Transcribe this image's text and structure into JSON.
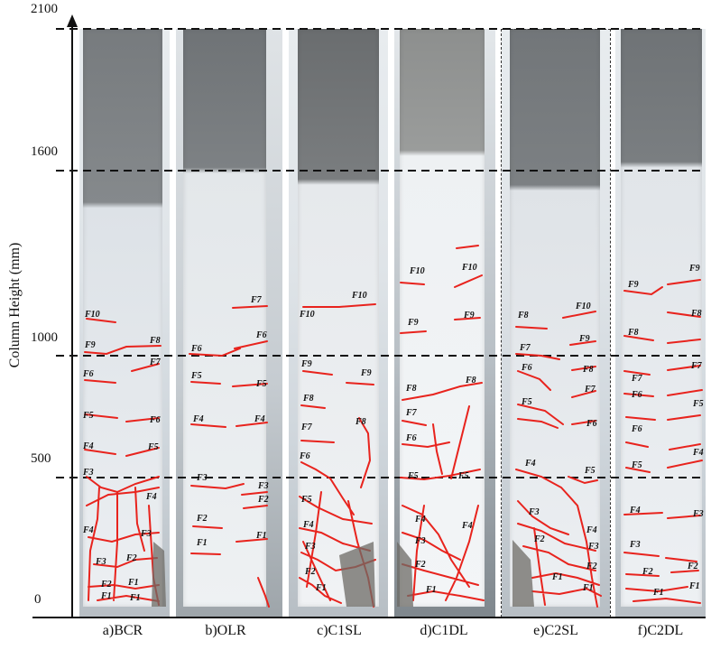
{
  "figure": {
    "y_axis_label": "Column Height (mm)",
    "y_ticks": [
      "2100",
      "1600",
      "1000",
      "500",
      "0"
    ],
    "columns": [
      {
        "id": "bcr",
        "label": "a)BCR"
      },
      {
        "id": "olr",
        "label": "b)OLR"
      },
      {
        "id": "c1sl",
        "label": "c)C1SL"
      },
      {
        "id": "c1dl",
        "label": "d)C1DL"
      },
      {
        "id": "c2sl",
        "label": "e)C2SL"
      },
      {
        "id": "c2dl",
        "label": "f)C2DL"
      }
    ],
    "crack_labels": [
      "F1",
      "F2",
      "F3",
      "F4",
      "F5",
      "F6",
      "F7",
      "F8",
      "F9",
      "F10"
    ],
    "colors": {
      "crack": "#e8231d",
      "concrete_top": "#7b7f82",
      "painted_face": "#eceff2",
      "dashes": "#111111"
    }
  }
}
